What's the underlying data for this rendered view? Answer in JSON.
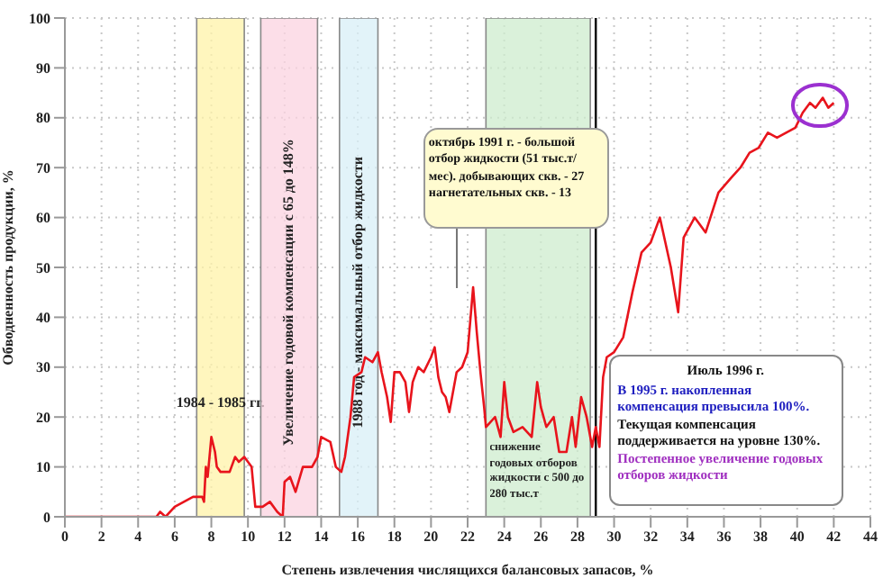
{
  "chart_data": {
    "type": "line",
    "xlabel": "Степень извлечения числящихся балансовых запасов, %",
    "ylabel": "Обводненность продукции, %",
    "x": [
      0,
      5,
      5.2,
      5.5,
      6,
      6.5,
      7,
      7.5,
      7.6,
      7.7,
      7.8,
      8,
      8.2,
      8.3,
      8.5,
      9,
      9.3,
      9.5,
      9.8,
      10,
      10.2,
      10.4,
      10.8,
      11.2,
      11.6,
      11.9,
      12,
      12.3,
      12.6,
      13,
      13.5,
      13.8,
      14,
      14.5,
      14.8,
      15.1,
      15.3,
      15.6,
      15.8,
      16.2,
      16.4,
      16.8,
      17.1,
      17.3,
      17.6,
      17.8,
      18,
      18.3,
      18.6,
      18.8,
      19,
      19.3,
      19.6,
      20,
      20.2,
      20.4,
      20.6,
      20.8,
      21,
      21.4,
      21.7,
      22,
      22.3,
      22.5,
      22.7,
      22.9,
      23,
      23.5,
      23.8,
      24,
      24.2,
      24.5,
      25,
      25.5,
      25.8,
      26,
      26.3,
      26.7,
      27,
      27.4,
      27.7,
      27.9,
      28.2,
      28.5,
      28.8,
      29,
      29.2,
      29.4,
      29.6,
      30,
      30.5,
      31,
      31.5,
      32,
      32.5,
      32.8,
      33.1,
      33.5,
      33.8,
      34.4,
      35,
      35.7,
      36.4,
      36.9,
      37.4,
      37.9,
      38.4,
      38.9,
      39.4,
      39.9,
      40.3,
      40.7,
      41,
      41.4,
      41.7,
      42
    ],
    "series": [
      {
        "color": "#e8141c",
        "values": [
          0,
          0,
          1,
          0,
          2,
          3,
          4,
          4,
          3,
          10,
          8,
          16,
          13,
          10,
          9,
          9,
          12,
          11,
          12,
          11,
          10,
          2,
          2,
          3,
          1,
          0,
          7,
          8,
          5,
          10,
          10,
          12,
          16,
          15,
          10,
          9,
          12,
          20,
          28,
          29,
          32,
          31,
          33,
          29,
          24,
          19,
          29,
          29,
          27,
          21,
          27,
          30,
          29,
          32,
          34,
          28,
          25,
          24,
          21,
          29,
          30,
          33,
          46,
          37,
          29,
          22,
          18,
          20,
          16,
          27,
          20,
          17,
          18,
          16,
          27,
          22,
          18,
          20,
          13,
          13,
          20,
          14,
          24,
          20,
          14,
          18,
          14,
          28,
          32,
          33,
          36,
          45,
          53,
          55,
          60,
          55,
          50,
          41,
          56,
          60,
          57,
          65,
          68,
          70,
          73,
          74,
          77,
          76,
          77,
          78,
          81,
          83,
          82,
          84,
          82,
          83
        ]
      }
    ],
    "xlim": [
      0,
      44
    ],
    "xticks": [
      0,
      2,
      4,
      6,
      8,
      10,
      12,
      14,
      16,
      18,
      20,
      22,
      24,
      26,
      28,
      30,
      32,
      34,
      36,
      38,
      40,
      42,
      44
    ],
    "ylim": [
      0,
      100
    ],
    "yticks": [
      0,
      10,
      20,
      30,
      40,
      50,
      60,
      70,
      80,
      90,
      100
    ],
    "grid": true,
    "marker": "none",
    "line_style": "solid",
    "bands": [
      {
        "axis": "x",
        "from": 7.2,
        "to": 9.8,
        "label": "1984 - 1985 гг.",
        "color": "#fff3a8"
      },
      {
        "axis": "x",
        "from": 10.7,
        "to": 13.8,
        "label": "Увеличение годовой компенсации с 65 до 148%",
        "color": "#fbd3e0"
      },
      {
        "axis": "x",
        "from": 15,
        "to": 17.1,
        "label": "1988 год - максимальный отбор жидкости",
        "color": "#d8eff7"
      },
      {
        "axis": "x",
        "from": 23,
        "to": 28.7,
        "label": "снижение годовых отборов жидкости с 500 до 280 тыс.т",
        "color": "#cdeccd"
      }
    ],
    "ref_lines": [
      {
        "axis": "x",
        "value": 29,
        "label": "Июль 1996 г.",
        "color": "#000000"
      }
    ],
    "annotations": [
      "октябрь 1991 г. - большой отбор жидкости (51 тыс.т/мес). добывающих скв. - 27 нагнетательных скв. - 13",
      "В 1995 г. накопленная компенсация превысила 100%.",
      "Текущая компенсация поддерживается на уровне 130%.",
      "Постепенное увеличение годовых отборов жидкости"
    ]
  }
}
